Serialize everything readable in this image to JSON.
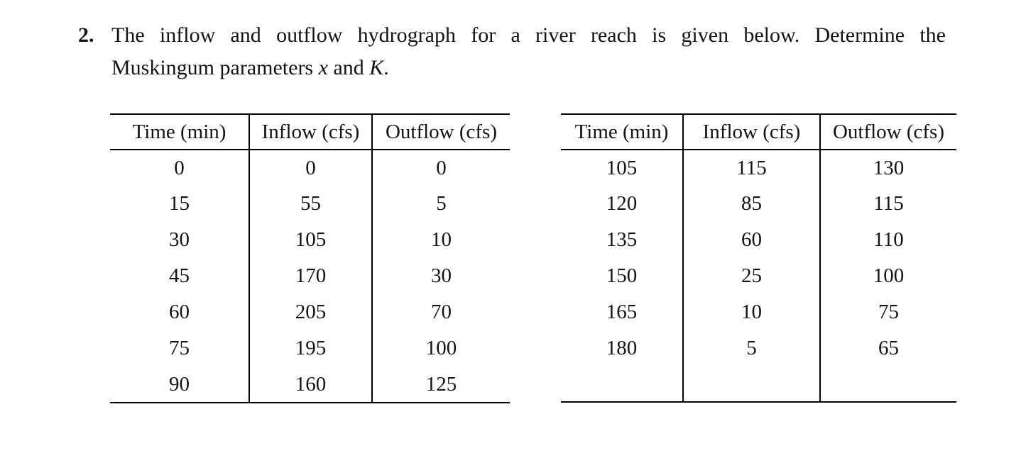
{
  "page": {
    "background": "#ffffff",
    "text_color": "#141414",
    "rule_color": "#000000"
  },
  "problem": {
    "number": "2.",
    "line1": "The inflow and outflow hydrograph for a river reach is given below.  Determine the",
    "line2": {
      "prefix": "Muskingum parameters ",
      "var1": "x",
      "middle": " and ",
      "var2": "K",
      "suffix": "."
    }
  },
  "tables": [
    {
      "name": "hydrograph-table-left",
      "headers": [
        "Time (min)",
        "Inflow (cfs)",
        "Outflow (cfs)"
      ],
      "rows": [
        [
          "0",
          "0",
          "0"
        ],
        [
          "15",
          "55",
          "5"
        ],
        [
          "30",
          "105",
          "10"
        ],
        [
          "45",
          "170",
          "30"
        ],
        [
          "60",
          "205",
          "70"
        ],
        [
          "75",
          "195",
          "100"
        ],
        [
          "90",
          "160",
          "125"
        ]
      ]
    },
    {
      "name": "hydrograph-table-right",
      "headers": [
        "Time (min)",
        "Inflow (cfs)",
        "Outflow (cfs)"
      ],
      "rows": [
        [
          "105",
          "115",
          "130"
        ],
        [
          "120",
          "85",
          "115"
        ],
        [
          "135",
          "60",
          "110"
        ],
        [
          "150",
          "25",
          "100"
        ],
        [
          "165",
          "10",
          "75"
        ],
        [
          "180",
          "5",
          "65"
        ]
      ]
    }
  ]
}
